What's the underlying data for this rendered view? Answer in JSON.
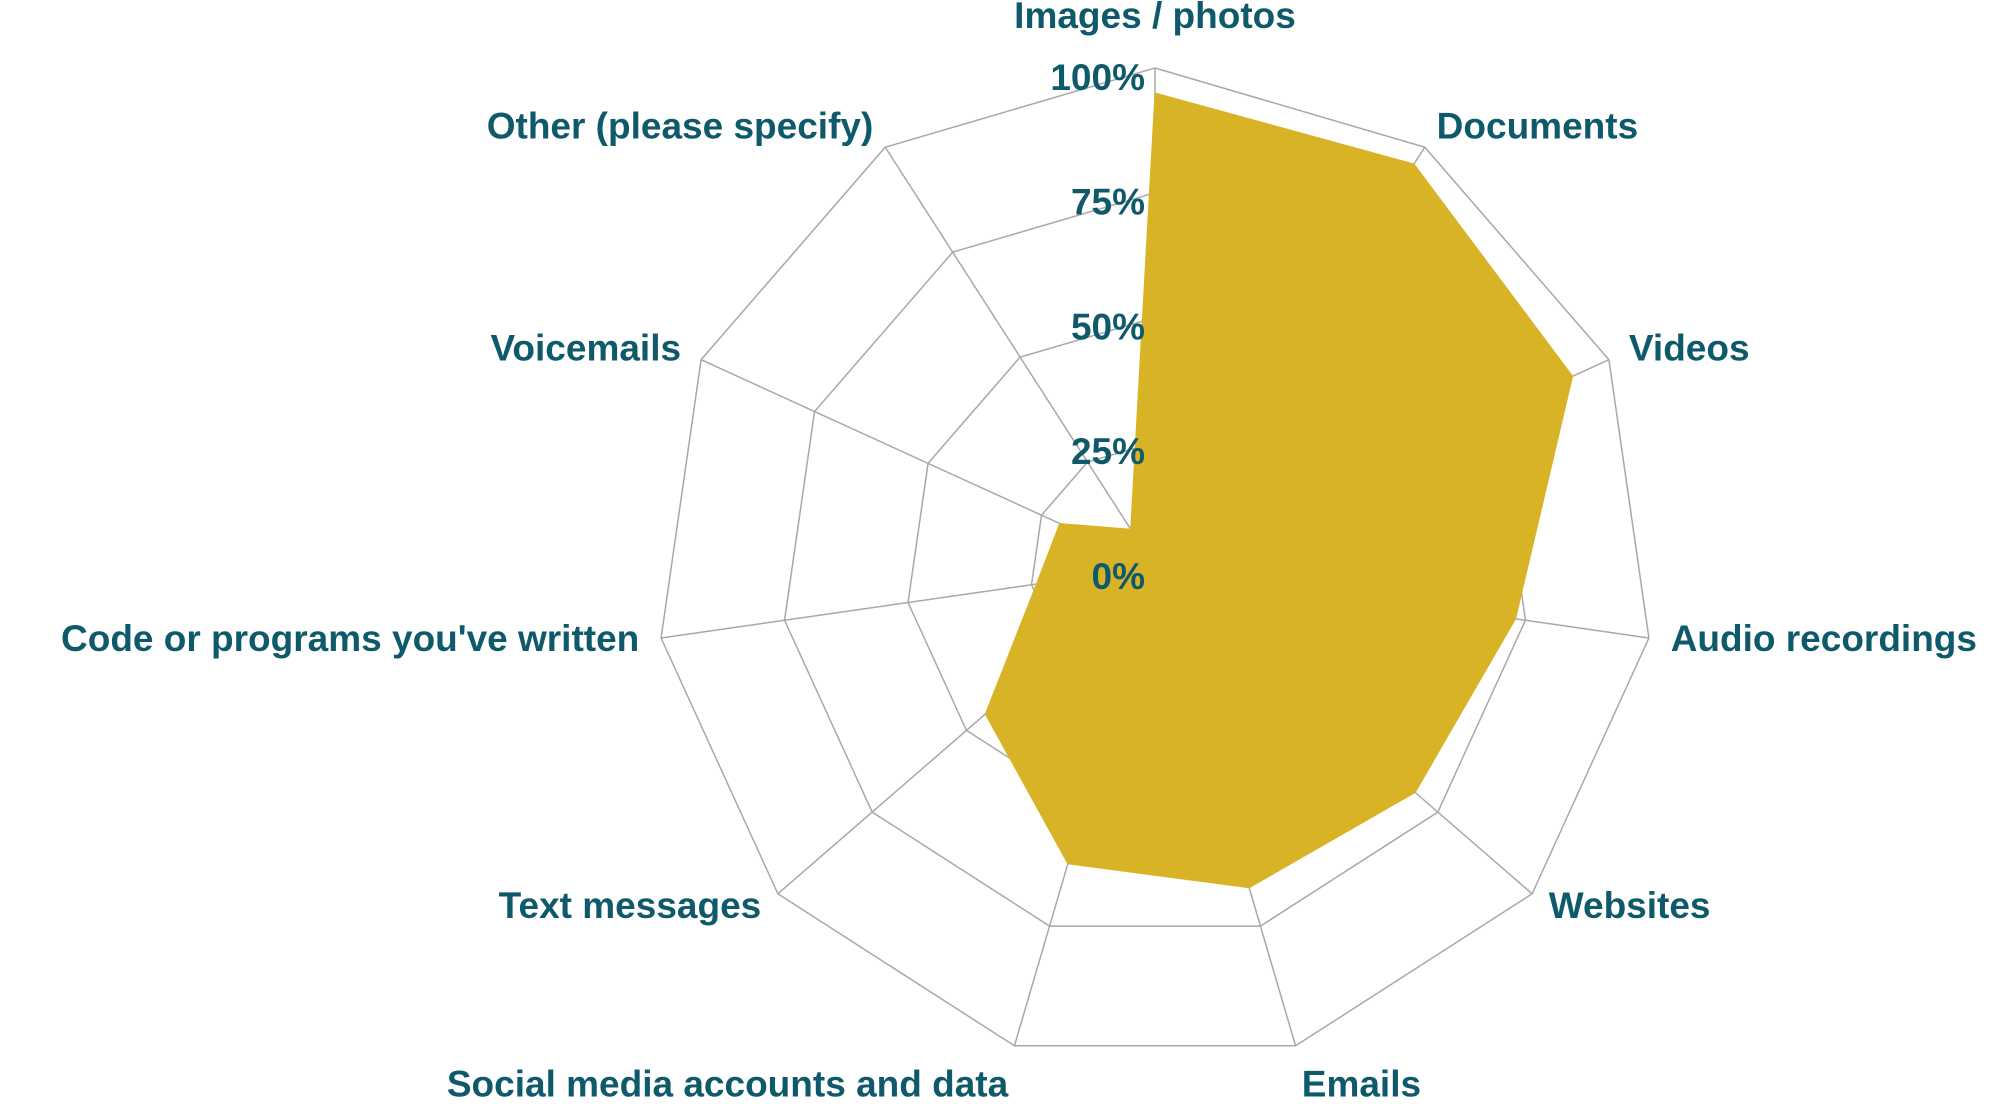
{
  "chart_data": {
    "type": "radar",
    "categories": [
      "Images / photos",
      "Documents",
      "Videos",
      "Audio recordings",
      "Websites",
      "Emails",
      "Social media accounts and data",
      "Text messages",
      "Code or programs you've written",
      "Voicemails",
      "Other (please specify)"
    ],
    "values": [
      95,
      96,
      92,
      73,
      69,
      67,
      62,
      45,
      24,
      21,
      9
    ],
    "color": "#d9b326",
    "ylim": [
      0,
      100
    ],
    "yticks": [
      {
        "value": 0,
        "label": "0%"
      },
      {
        "value": 25,
        "label": "25%"
      },
      {
        "value": 50,
        "label": "50%"
      },
      {
        "value": 75,
        "label": "75%"
      },
      {
        "value": 100,
        "label": "100%"
      }
    ],
    "grid": true
  }
}
